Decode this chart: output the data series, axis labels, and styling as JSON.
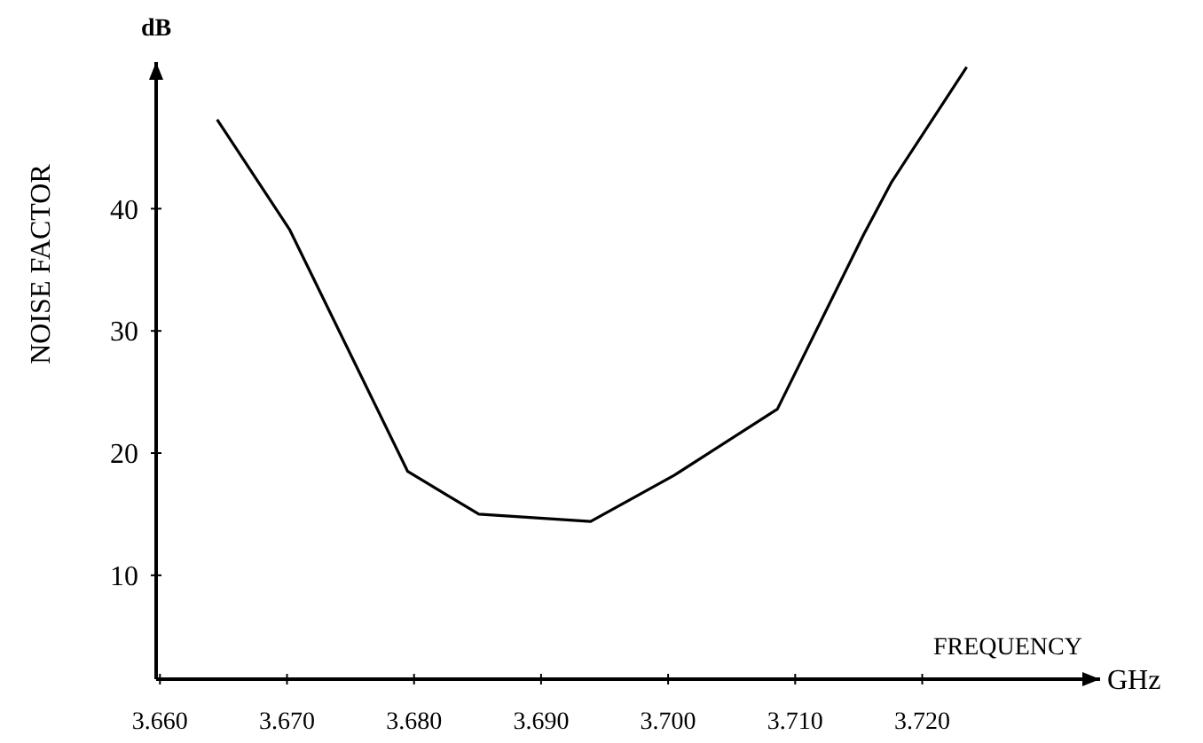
{
  "chart_data": {
    "type": "line",
    "xlabel": "FREQUENCY",
    "ylabel": "NOISE FACTOR",
    "annotations": [
      "dB",
      "GHz"
    ],
    "x": [
      3.6645,
      3.6702,
      3.6795,
      3.6851,
      3.6939,
      3.7005,
      3.7086,
      3.7154,
      3.7176,
      3.7235
    ],
    "series": [
      {
        "color": "#000000",
        "values": [
          47.3,
          38.3,
          18.5,
          15.0,
          14.4,
          18.2,
          23.6,
          37.9,
          42.2,
          51.6
        ]
      }
    ],
    "xlim": [
      3.6597,
      3.734
    ],
    "ylim": [
      1.5,
      52
    ],
    "xticks": [
      {
        "value": 3.66,
        "label": "3.660"
      },
      {
        "value": 3.67,
        "label": "3.670"
      },
      {
        "value": 3.68,
        "label": "3.680"
      },
      {
        "value": 3.69,
        "label": "3.690"
      },
      {
        "value": 3.7,
        "label": "3.700"
      },
      {
        "value": 3.71,
        "label": "3.710"
      },
      {
        "value": 3.72,
        "label": "3.720"
      }
    ],
    "yticks": [
      10,
      20,
      30,
      40
    ],
    "marker": "none",
    "line_style": "solid"
  }
}
